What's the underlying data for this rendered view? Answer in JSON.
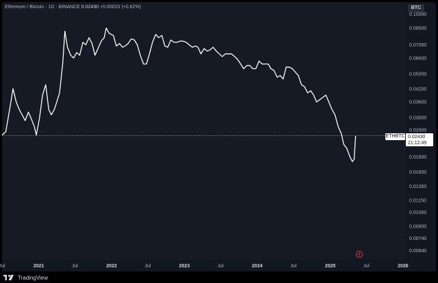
{
  "legend": {
    "symbol": "Ethereum / Bitcoin",
    "interval": "1D",
    "exchange": "BINANCE",
    "sep": "·",
    "last": "0.02430",
    "change": "+0.00015 (+0.62%)"
  },
  "currency": "BTC",
  "price_tag": {
    "symbol": "ETHBTC",
    "price": "0.02430",
    "countdown": "21:12:49"
  },
  "footer": {
    "brand": "TradingView"
  },
  "colors": {
    "background": "#161a25",
    "line": "#ffffff",
    "accent": "#f23645"
  },
  "chart_data": {
    "type": "line",
    "title": "Ethereum / Bitcoin · 1D · BINANCE",
    "scale": "log",
    "ylim": [
      0.0058,
      0.115
    ],
    "xlim": [
      "2020-07-01",
      "2026-01-15"
    ],
    "yticks": [
      "0.10000",
      "0.08500",
      "0.07000",
      "0.06000",
      "0.05000",
      "0.04200",
      "0.03600",
      "0.03000",
      "0.02600",
      "0.02200",
      "0.01900",
      "0.01600",
      "0.01350",
      "0.01150",
      "0.01000",
      "0.00850",
      "0.00740",
      "0.00640"
    ],
    "xticks": [
      {
        "label": "Jul",
        "date": "2020-07-01"
      },
      {
        "label": "2021",
        "date": "2021-01-01"
      },
      {
        "label": "Jul",
        "date": "2021-07-01"
      },
      {
        "label": "2022",
        "date": "2022-01-01"
      },
      {
        "label": "Jul",
        "date": "2022-07-01"
      },
      {
        "label": "2023",
        "date": "2023-01-01"
      },
      {
        "label": "Jul",
        "date": "2023-07-01"
      },
      {
        "label": "2024",
        "date": "2024-01-01"
      },
      {
        "label": "Jul",
        "date": "2024-07-01"
      },
      {
        "label": "2025",
        "date": "2025-01-01"
      },
      {
        "label": "Jul",
        "date": "2025-07-01"
      },
      {
        "label": "2026",
        "date": "2026-01-01"
      }
    ],
    "last_price": 0.0243,
    "series": [
      {
        "points": [
          [
            "2020-07-01",
            0.0245
          ],
          [
            "2020-07-20",
            0.0255
          ],
          [
            "2020-08-10",
            0.034
          ],
          [
            "2020-08-25",
            0.042
          ],
          [
            "2020-09-10",
            0.036
          ],
          [
            "2020-09-25",
            0.033
          ],
          [
            "2020-10-10",
            0.031
          ],
          [
            "2020-10-25",
            0.029
          ],
          [
            "2020-11-10",
            0.032
          ],
          [
            "2020-11-25",
            0.0295
          ],
          [
            "2020-12-10",
            0.027
          ],
          [
            "2020-12-20",
            0.0245
          ],
          [
            "2021-01-05",
            0.03
          ],
          [
            "2021-01-20",
            0.039
          ],
          [
            "2021-02-05",
            0.044
          ],
          [
            "2021-02-20",
            0.033
          ],
          [
            "2021-03-05",
            0.031
          ],
          [
            "2021-03-20",
            0.033
          ],
          [
            "2021-04-01",
            0.036
          ],
          [
            "2021-04-15",
            0.04
          ],
          [
            "2021-05-01",
            0.056
          ],
          [
            "2021-05-12",
            0.082
          ],
          [
            "2021-05-25",
            0.068
          ],
          [
            "2021-06-10",
            0.062
          ],
          [
            "2021-06-25",
            0.06
          ],
          [
            "2021-07-10",
            0.064
          ],
          [
            "2021-07-25",
            0.062
          ],
          [
            "2021-08-10",
            0.072
          ],
          [
            "2021-08-25",
            0.07
          ],
          [
            "2021-09-10",
            0.076
          ],
          [
            "2021-09-25",
            0.071
          ],
          [
            "2021-10-10",
            0.062
          ],
          [
            "2021-10-25",
            0.067
          ],
          [
            "2021-11-10",
            0.073
          ],
          [
            "2021-11-25",
            0.076
          ],
          [
            "2021-12-05",
            0.085
          ],
          [
            "2021-12-20",
            0.08
          ],
          [
            "2022-01-10",
            0.078
          ],
          [
            "2022-01-25",
            0.069
          ],
          [
            "2022-02-10",
            0.071
          ],
          [
            "2022-02-25",
            0.068
          ],
          [
            "2022-03-10",
            0.069
          ],
          [
            "2022-03-25",
            0.071
          ],
          [
            "2022-04-10",
            0.075
          ],
          [
            "2022-04-25",
            0.074
          ],
          [
            "2022-05-10",
            0.07
          ],
          [
            "2022-05-25",
            0.062
          ],
          [
            "2022-06-10",
            0.056
          ],
          [
            "2022-06-25",
            0.056
          ],
          [
            "2022-07-10",
            0.063
          ],
          [
            "2022-07-25",
            0.072
          ],
          [
            "2022-08-10",
            0.079
          ],
          [
            "2022-08-25",
            0.076
          ],
          [
            "2022-09-10",
            0.078
          ],
          [
            "2022-09-25",
            0.069
          ],
          [
            "2022-10-10",
            0.068
          ],
          [
            "2022-10-25",
            0.074
          ],
          [
            "2022-11-10",
            0.072
          ],
          [
            "2022-11-25",
            0.072
          ],
          [
            "2022-12-10",
            0.073
          ],
          [
            "2022-12-25",
            0.073
          ],
          [
            "2023-01-10",
            0.072
          ],
          [
            "2023-01-25",
            0.07
          ],
          [
            "2023-02-10",
            0.068
          ],
          [
            "2023-02-25",
            0.069
          ],
          [
            "2023-03-10",
            0.068
          ],
          [
            "2023-03-25",
            0.063
          ],
          [
            "2023-04-10",
            0.067
          ],
          [
            "2023-04-25",
            0.065
          ],
          [
            "2023-05-10",
            0.066
          ],
          [
            "2023-05-25",
            0.068
          ],
          [
            "2023-06-10",
            0.065
          ],
          [
            "2023-06-25",
            0.063
          ],
          [
            "2023-07-10",
            0.061
          ],
          [
            "2023-07-25",
            0.063
          ],
          [
            "2023-08-10",
            0.063
          ],
          [
            "2023-08-25",
            0.063
          ],
          [
            "2023-09-10",
            0.061
          ],
          [
            "2023-09-25",
            0.059
          ],
          [
            "2023-10-10",
            0.056
          ],
          [
            "2023-10-25",
            0.053
          ],
          [
            "2023-11-10",
            0.055
          ],
          [
            "2023-11-25",
            0.055
          ],
          [
            "2023-12-10",
            0.053
          ],
          [
            "2023-12-25",
            0.053
          ],
          [
            "2024-01-10",
            0.058
          ],
          [
            "2024-01-25",
            0.056
          ],
          [
            "2024-02-10",
            0.056
          ],
          [
            "2024-02-25",
            0.056
          ],
          [
            "2024-03-10",
            0.053
          ],
          [
            "2024-03-25",
            0.052
          ],
          [
            "2024-04-10",
            0.048
          ],
          [
            "2024-04-25",
            0.049
          ],
          [
            "2024-05-10",
            0.047
          ],
          [
            "2024-05-25",
            0.054
          ],
          [
            "2024-06-10",
            0.054
          ],
          [
            "2024-06-25",
            0.053
          ],
          [
            "2024-07-10",
            0.051
          ],
          [
            "2024-07-25",
            0.049
          ],
          [
            "2024-08-10",
            0.044
          ],
          [
            "2024-08-25",
            0.043
          ],
          [
            "2024-09-10",
            0.04
          ],
          [
            "2024-09-25",
            0.041
          ],
          [
            "2024-10-10",
            0.039
          ],
          [
            "2024-10-25",
            0.036
          ],
          [
            "2024-11-10",
            0.037
          ],
          [
            "2024-11-25",
            0.038
          ],
          [
            "2024-12-10",
            0.039
          ],
          [
            "2024-12-25",
            0.036
          ],
          [
            "2025-01-10",
            0.033
          ],
          [
            "2025-01-25",
            0.031
          ],
          [
            "2025-02-10",
            0.027
          ],
          [
            "2025-02-25",
            0.025
          ],
          [
            "2025-03-10",
            0.022
          ],
          [
            "2025-03-25",
            0.021
          ],
          [
            "2025-04-10",
            0.019
          ],
          [
            "2025-04-22",
            0.018
          ],
          [
            "2025-05-01",
            0.0185
          ],
          [
            "2025-05-08",
            0.024
          ],
          [
            "2025-05-10",
            0.0243
          ]
        ]
      }
    ]
  }
}
